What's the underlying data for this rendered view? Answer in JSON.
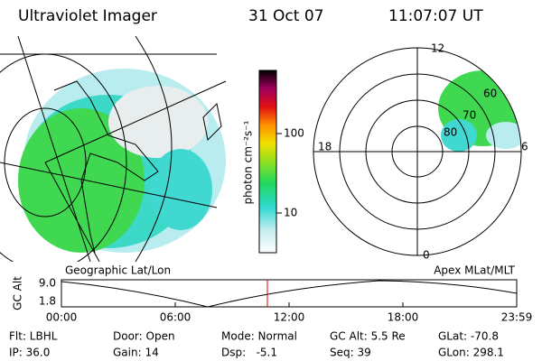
{
  "header": {
    "title": "Ultraviolet Imager",
    "date": "31 Oct 07",
    "time": "11:07:07 UT"
  },
  "colorbar": {
    "label": "photon cm⁻²s⁻¹",
    "ticks": [
      "100",
      "10"
    ]
  },
  "polar": {
    "labels": {
      "top": "12",
      "left": "18",
      "right": "6",
      "bottom": "0"
    },
    "rings": [
      "80",
      "70",
      "60"
    ]
  },
  "panels": {
    "left": "Geographic Lat/Lon",
    "right": "Apex MLat/MLT"
  },
  "altitude_plot": {
    "ylabel": "GC Alt",
    "yticks": [
      "9.0",
      "1.8"
    ],
    "xticks": [
      "00:00",
      "06:00",
      "12:00",
      "18:00",
      "23:59"
    ]
  },
  "status": [
    [
      "Flt: LBHL",
      "IP: 36.0"
    ],
    [
      "Door: Open",
      "Gain: 14"
    ],
    [
      "Mode: Normal",
      "Dsp:   -5.1"
    ],
    [
      "GC Alt: 5.5 Re",
      "Seq: 39"
    ],
    [
      "GLat: -70.8",
      "GLon: 298.1"
    ]
  ]
}
